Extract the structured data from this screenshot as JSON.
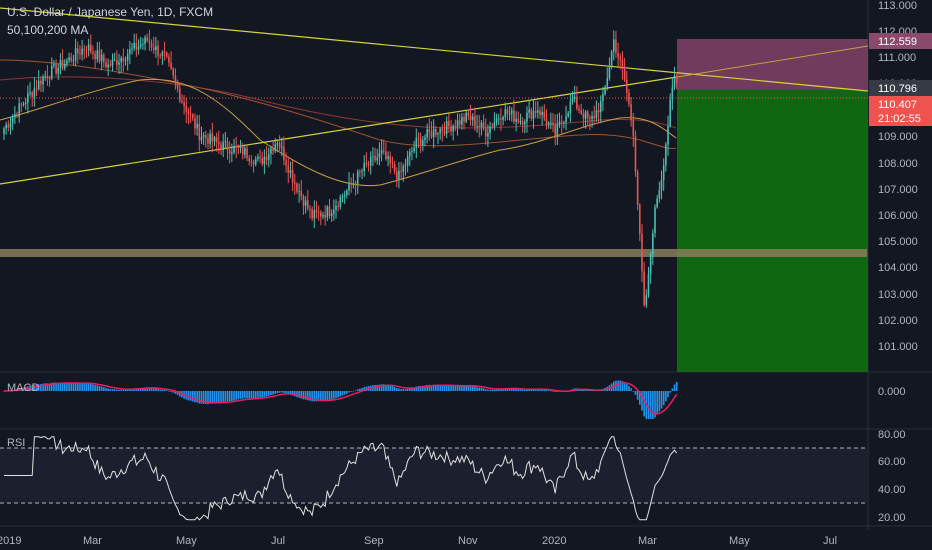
{
  "header": {
    "symbol_title": "U.S. Dollar / Japanese Yen, 1D, FXCM",
    "ma_label": "50,100,200 MA"
  },
  "colors": {
    "background": "#131722",
    "bull": "#26a69a",
    "bull_candle": "#4cc1b3",
    "bear": "#ef5350",
    "long_target_fill": "#0f6b12",
    "long_stop_fill": "#7b3f63",
    "trendline": "#d4d43a",
    "support_zone": "#8a7d5a",
    "ma50": "#c8a040",
    "ma100": "#a0522d",
    "ma200": "#8b3a3a",
    "macd_line": "#e91e63",
    "macd_hist": "#2196f3",
    "rsi_line": "#e0e0e0",
    "price_tag_current": "#ef5350",
    "price_tag_gray": "#363a45",
    "price_tag_stop": "#8b4a6b"
  },
  "price_axis": {
    "ticks": [
      "113.000",
      "112.000",
      "111.000",
      "110.000",
      "109.000",
      "108.000",
      "107.000",
      "106.000",
      "105.000",
      "104.000",
      "103.000",
      "102.000",
      "101.000"
    ],
    "tags": {
      "stop": "112.559",
      "entry": "110.796",
      "current": "110.407",
      "countdown": "21:02:55"
    }
  },
  "time_axis": {
    "labels": [
      "2019",
      "Mar",
      "May",
      "Jul",
      "Sep",
      "Nov",
      "2020",
      "Mar",
      "May",
      "Jul"
    ]
  },
  "macd": {
    "label": "MACD",
    "ticks": [
      "0.000"
    ]
  },
  "rsi": {
    "label": "RSI",
    "ticks": [
      "80.00",
      "60.00",
      "40.00",
      "20.00"
    ]
  },
  "chart_data": {
    "type": "candlestick",
    "title": "U.S. Dollar / Japanese Yen, 1D, FXCM",
    "indicators": [
      "50,100,200 MA",
      "MACD",
      "RSI"
    ],
    "ylim": [
      100.3,
      113.4
    ],
    "price_path": [
      {
        "t": 0,
        "p": 108.8
      },
      {
        "t": 8,
        "p": 109.6
      },
      {
        "t": 18,
        "p": 110.6
      },
      {
        "t": 28,
        "p": 111.1
      },
      {
        "t": 38,
        "p": 111.7
      },
      {
        "t": 48,
        "p": 111.0
      },
      {
        "t": 58,
        "p": 111.5
      },
      {
        "t": 66,
        "p": 111.9
      },
      {
        "t": 74,
        "p": 111.3
      },
      {
        "t": 82,
        "p": 109.8
      },
      {
        "t": 90,
        "p": 108.6
      },
      {
        "t": 100,
        "p": 108.2
      },
      {
        "t": 110,
        "p": 108.0
      },
      {
        "t": 118,
        "p": 107.6
      },
      {
        "t": 126,
        "p": 108.4
      },
      {
        "t": 134,
        "p": 106.9
      },
      {
        "t": 142,
        "p": 105.7
      },
      {
        "t": 150,
        "p": 105.9
      },
      {
        "t": 158,
        "p": 106.6
      },
      {
        "t": 166,
        "p": 107.4
      },
      {
        "t": 174,
        "p": 107.9
      },
      {
        "t": 182,
        "p": 107.1
      },
      {
        "t": 190,
        "p": 108.3
      },
      {
        "t": 198,
        "p": 108.7
      },
      {
        "t": 206,
        "p": 108.9
      },
      {
        "t": 214,
        "p": 109.2
      },
      {
        "t": 222,
        "p": 108.7
      },
      {
        "t": 230,
        "p": 109.4
      },
      {
        "t": 238,
        "p": 109.1
      },
      {
        "t": 246,
        "p": 109.5
      },
      {
        "t": 254,
        "p": 108.6
      },
      {
        "t": 262,
        "p": 109.8
      },
      {
        "t": 270,
        "p": 109.0
      },
      {
        "t": 276,
        "p": 109.8
      },
      {
        "t": 281,
        "p": 111.9
      },
      {
        "t": 286,
        "p": 110.5
      },
      {
        "t": 290,
        "p": 108.7
      },
      {
        "t": 293,
        "p": 104.9
      },
      {
        "t": 295,
        "p": 102.4
      },
      {
        "t": 297,
        "p": 103.5
      },
      {
        "t": 299,
        "p": 105.3
      },
      {
        "t": 301,
        "p": 106.4
      },
      {
        "t": 303,
        "p": 107.1
      },
      {
        "t": 305,
        "p": 108.3
      },
      {
        "t": 307,
        "p": 109.6
      },
      {
        "t": 309,
        "p": 110.6
      },
      {
        "t": 310,
        "p": 110.4
      }
    ],
    "long_position": {
      "entry": 110.796,
      "stop": 112.559,
      "target": 100.3
    },
    "support_zone": [
      104.5,
      104.75
    ],
    "current_price": 110.407
  }
}
